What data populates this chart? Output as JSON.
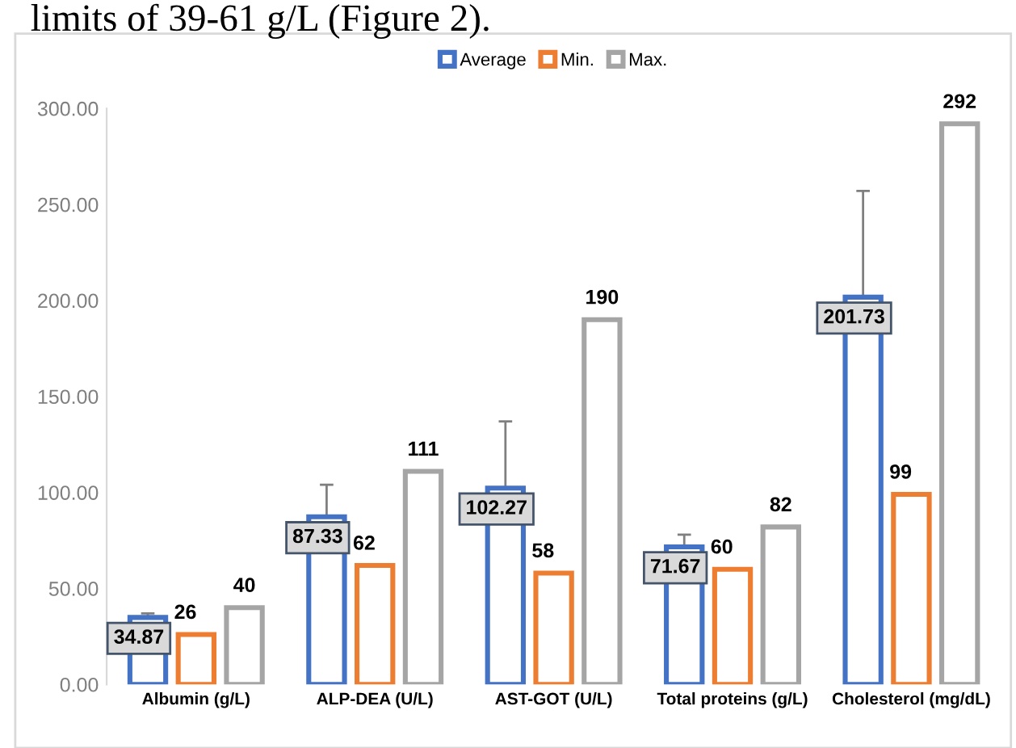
{
  "chart_data": {
    "type": "bar",
    "annotations": [
      "limits of 39-61 g/L (Figure 2)."
    ],
    "categories": [
      "Albumin (g/L)",
      "ALP-DEA (U/L)",
      "AST-GOT (U/L)",
      "Total proteins (g/L)",
      "Cholesterol (mg/dL)"
    ],
    "series": [
      {
        "name": "Average",
        "color": "#4472c4",
        "values": [
          34.87,
          87.33,
          102.27,
          71.67,
          201.73
        ],
        "errors": [
          [
            34.87,
            37
          ],
          [
            87.33,
            104
          ],
          [
            102.27,
            137
          ],
          [
            71.67,
            78
          ],
          [
            201.73,
            257
          ]
        ]
      },
      {
        "name": "Min.",
        "color": "#ed7d31",
        "values": [
          26,
          62,
          58,
          60,
          99
        ]
      },
      {
        "name": "Max.",
        "color": "#a5a5a5",
        "values": [
          40,
          111,
          190,
          82,
          292
        ]
      }
    ],
    "ylim": [
      0,
      300
    ],
    "yticks": [
      {
        "value": 0,
        "label": "0.00"
      },
      {
        "value": 50,
        "label": "50.00"
      },
      {
        "value": 100,
        "label": "100.00"
      },
      {
        "value": 150,
        "label": "150.00"
      },
      {
        "value": 200,
        "label": "200.00"
      },
      {
        "value": 250,
        "label": "250.00"
      },
      {
        "value": 300,
        "label": "300.00"
      }
    ],
    "data_labels": true,
    "legend": "top",
    "grid": false
  }
}
